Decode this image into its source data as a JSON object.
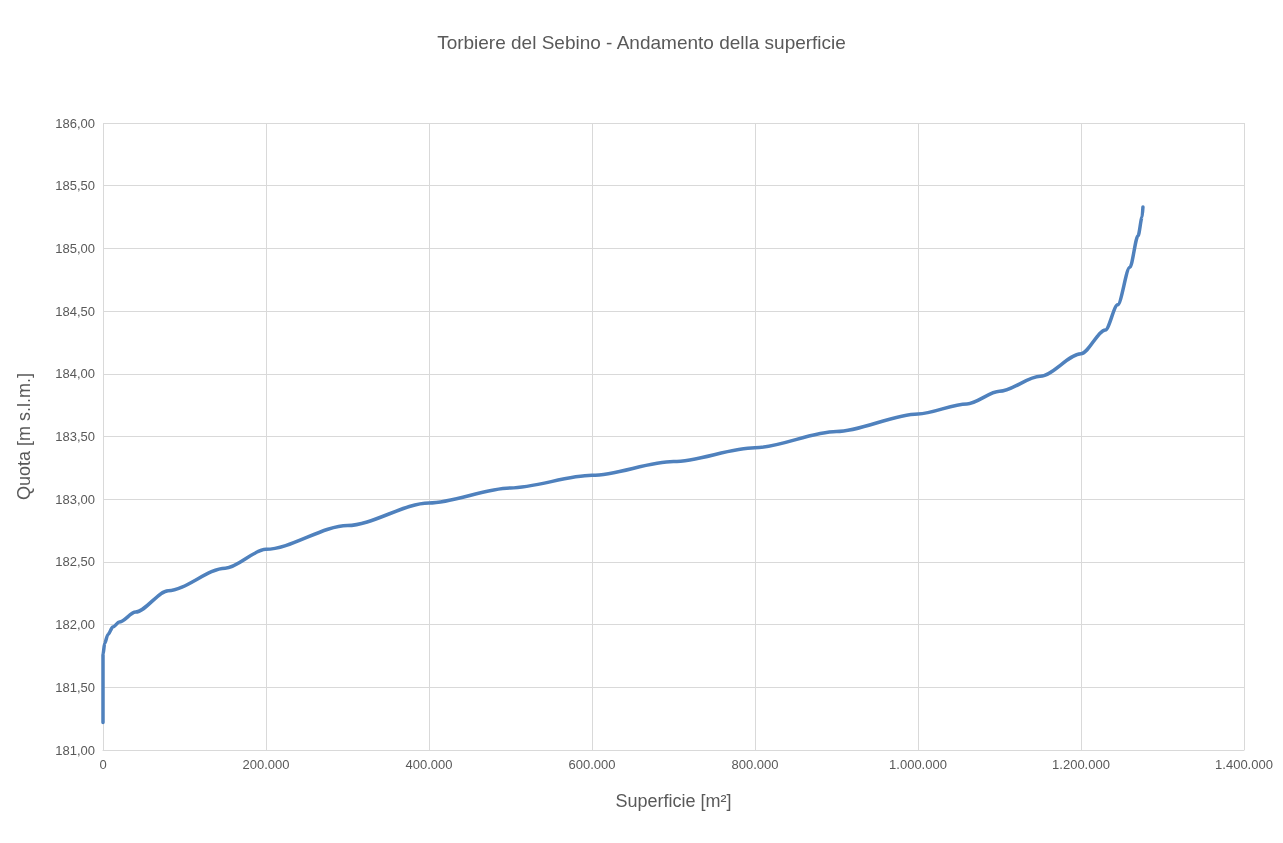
{
  "chart_data": {
    "type": "line",
    "title": "Torbiere del Sebino - Andamento della superficie",
    "xlabel": "Superficie [m²]",
    "ylabel": "Quota [m s.l.m.]",
    "x": [
      0,
      0,
      0,
      2000,
      6000,
      12000,
      20000,
      40000,
      80000,
      150000,
      200000,
      300000,
      400000,
      500000,
      600000,
      700000,
      800000,
      900000,
      1000000,
      1060000,
      1100000,
      1150000,
      1200000,
      1230000,
      1245000,
      1260000,
      1270000,
      1275000,
      1276000
    ],
    "series": [
      {
        "color": "#4f81bd",
        "values": [
          181.22,
          181.5,
          181.76,
          181.85,
          181.92,
          181.98,
          182.02,
          182.1,
          182.27,
          182.45,
          182.6,
          182.79,
          182.97,
          183.09,
          183.19,
          183.3,
          183.41,
          183.54,
          183.68,
          183.76,
          183.86,
          183.98,
          184.16,
          184.35,
          184.55,
          184.85,
          185.1,
          185.25,
          185.33
        ]
      }
    ],
    "xlim": [
      0,
      1400000
    ],
    "xticks": [
      0,
      {
        "value": 200000,
        "label": "200.000"
      },
      {
        "value": 400000,
        "label": "400.000"
      },
      {
        "value": 600000,
        "label": "600.000"
      },
      {
        "value": 800000,
        "label": "800.000"
      },
      {
        "value": 1000000,
        "label": "1.000.000"
      },
      {
        "value": 1200000,
        "label": "1.200.000"
      },
      {
        "value": 1400000,
        "label": "1.400.000"
      }
    ],
    "ylim": [
      181,
      186
    ],
    "yticks": [
      {
        "value": 181,
        "label": "181,00"
      },
      {
        "value": 181.5,
        "label": "181,50"
      },
      {
        "value": 182,
        "label": "182,00"
      },
      {
        "value": 182.5,
        "label": "182,50"
      },
      {
        "value": 183,
        "label": "183,00"
      },
      {
        "value": 183.5,
        "label": "183,50"
      },
      {
        "value": 184,
        "label": "184,00"
      },
      {
        "value": 184.5,
        "label": "184,50"
      },
      {
        "value": 185,
        "label": "185,00"
      },
      {
        "value": 185.5,
        "label": "185,50"
      },
      {
        "value": 186,
        "label": "186,00"
      }
    ],
    "grid": true,
    "marker": "none",
    "line_style": "solid"
  }
}
